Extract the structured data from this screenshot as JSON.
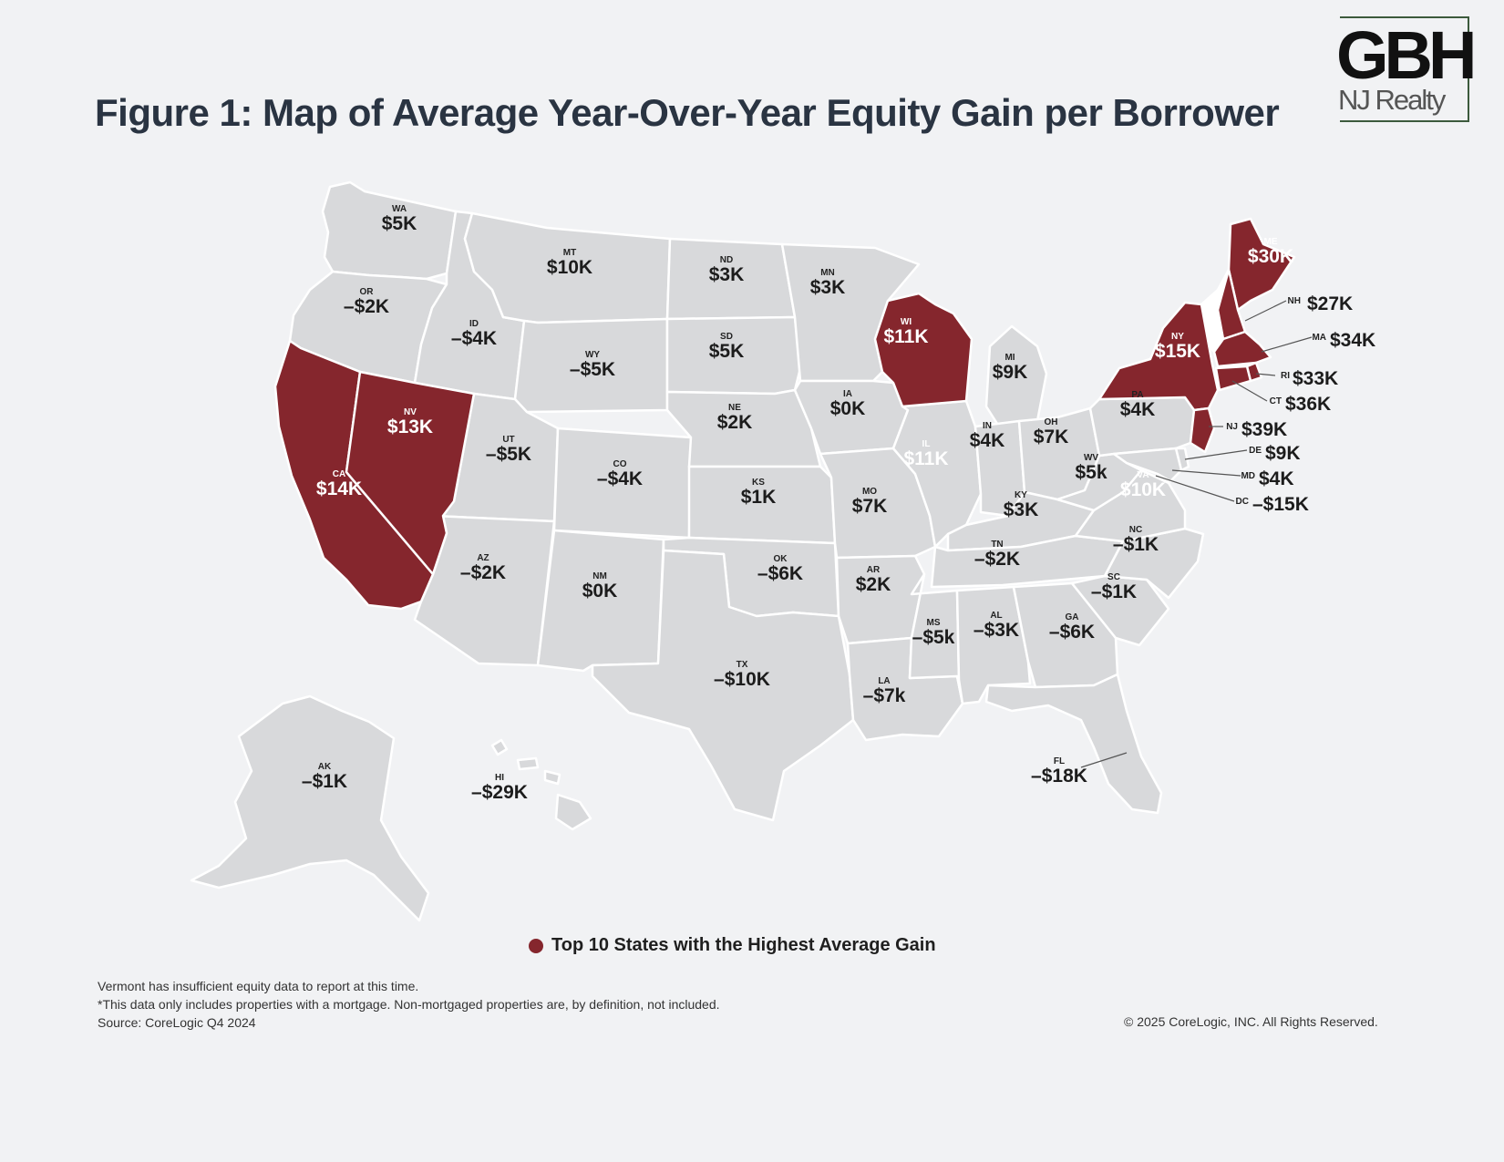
{
  "title": "Figure 1: Map of Average Year-Over-Year Equity Gain per Borrower",
  "logo": {
    "main": "GBH",
    "sub": "NJ Realty"
  },
  "colors": {
    "top10": "#85262d",
    "other": "#d8d9db",
    "vermont": "#ffffff",
    "background": "#f1f2f4"
  },
  "legend": {
    "label": "Top 10 States with the Highest Average Gain"
  },
  "footnotes": [
    "Vermont has insufficient equity data to report at this time.",
    "*This data only includes properties with a mortgage. Non-mortgaged properties are, by definition, not included.",
    "Source: CoreLogic Q4 2024"
  ],
  "copyright": "© 2025 CoreLogic, INC. All Rights Reserved.",
  "states": [
    {
      "abbr": "WA",
      "value": "$5K",
      "top10": false
    },
    {
      "abbr": "OR",
      "value": "–$2K",
      "top10": false
    },
    {
      "abbr": "CA",
      "value": "$14K",
      "top10": true
    },
    {
      "abbr": "NV",
      "value": "$13K",
      "top10": true
    },
    {
      "abbr": "ID",
      "value": "–$4K",
      "top10": false
    },
    {
      "abbr": "MT",
      "value": "$10K",
      "top10": false
    },
    {
      "abbr": "WY",
      "value": "–$5K",
      "top10": false
    },
    {
      "abbr": "UT",
      "value": "–$5K",
      "top10": false
    },
    {
      "abbr": "CO",
      "value": "–$4K",
      "top10": false
    },
    {
      "abbr": "AZ",
      "value": "–$2K",
      "top10": false
    },
    {
      "abbr": "NM",
      "value": "$0K",
      "top10": false
    },
    {
      "abbr": "ND",
      "value": "$3K",
      "top10": false
    },
    {
      "abbr": "SD",
      "value": "$5K",
      "top10": false
    },
    {
      "abbr": "NE",
      "value": "$2K",
      "top10": false
    },
    {
      "abbr": "KS",
      "value": "$1K",
      "top10": false
    },
    {
      "abbr": "OK",
      "value": "–$6K",
      "top10": false
    },
    {
      "abbr": "TX",
      "value": "–$10K",
      "top10": false
    },
    {
      "abbr": "MN",
      "value": "$3K",
      "top10": false
    },
    {
      "abbr": "IA",
      "value": "$0K",
      "top10": false
    },
    {
      "abbr": "MO",
      "value": "$7K",
      "top10": false
    },
    {
      "abbr": "AR",
      "value": "$2K",
      "top10": false
    },
    {
      "abbr": "LA",
      "value": "–$7k",
      "top10": false
    },
    {
      "abbr": "WI",
      "value": "$11K",
      "top10": true
    },
    {
      "abbr": "IL",
      "value": "$11K",
      "top10": false
    },
    {
      "abbr": "MI",
      "value": "$9K",
      "top10": false
    },
    {
      "abbr": "IN",
      "value": "$4K",
      "top10": false
    },
    {
      "abbr": "OH",
      "value": "$7K",
      "top10": false
    },
    {
      "abbr": "KY",
      "value": "$3K",
      "top10": false
    },
    {
      "abbr": "TN",
      "value": "–$2K",
      "top10": false
    },
    {
      "abbr": "MS",
      "value": "–$5k",
      "top10": false
    },
    {
      "abbr": "AL",
      "value": "–$3K",
      "top10": false
    },
    {
      "abbr": "GA",
      "value": "–$6K",
      "top10": false
    },
    {
      "abbr": "FL",
      "value": "–$18K",
      "top10": false
    },
    {
      "abbr": "SC",
      "value": "–$1K",
      "top10": false
    },
    {
      "abbr": "NC",
      "value": "–$1K",
      "top10": false
    },
    {
      "abbr": "VA",
      "value": "$10K",
      "top10": false
    },
    {
      "abbr": "WV",
      "value": "$5k",
      "top10": false
    },
    {
      "abbr": "PA",
      "value": "$4K",
      "top10": false
    },
    {
      "abbr": "NY",
      "value": "$15K",
      "top10": true
    },
    {
      "abbr": "ME",
      "value": "$30K",
      "top10": true
    },
    {
      "abbr": "NH",
      "value": "$27K",
      "top10": true
    },
    {
      "abbr": "VT",
      "value": "",
      "top10": false
    },
    {
      "abbr": "MA",
      "value": "$34K",
      "top10": true
    },
    {
      "abbr": "RI",
      "value": "$33K",
      "top10": true
    },
    {
      "abbr": "CT",
      "value": "$36K",
      "top10": true
    },
    {
      "abbr": "NJ",
      "value": "$39K",
      "top10": true
    },
    {
      "abbr": "DE",
      "value": "$9K",
      "top10": false
    },
    {
      "abbr": "MD",
      "value": "$4K",
      "top10": false
    },
    {
      "abbr": "DC",
      "value": "–$15K",
      "top10": false
    },
    {
      "abbr": "AK",
      "value": "–$1K",
      "top10": false
    },
    {
      "abbr": "HI",
      "value": "–$29K",
      "top10": false
    }
  ]
}
